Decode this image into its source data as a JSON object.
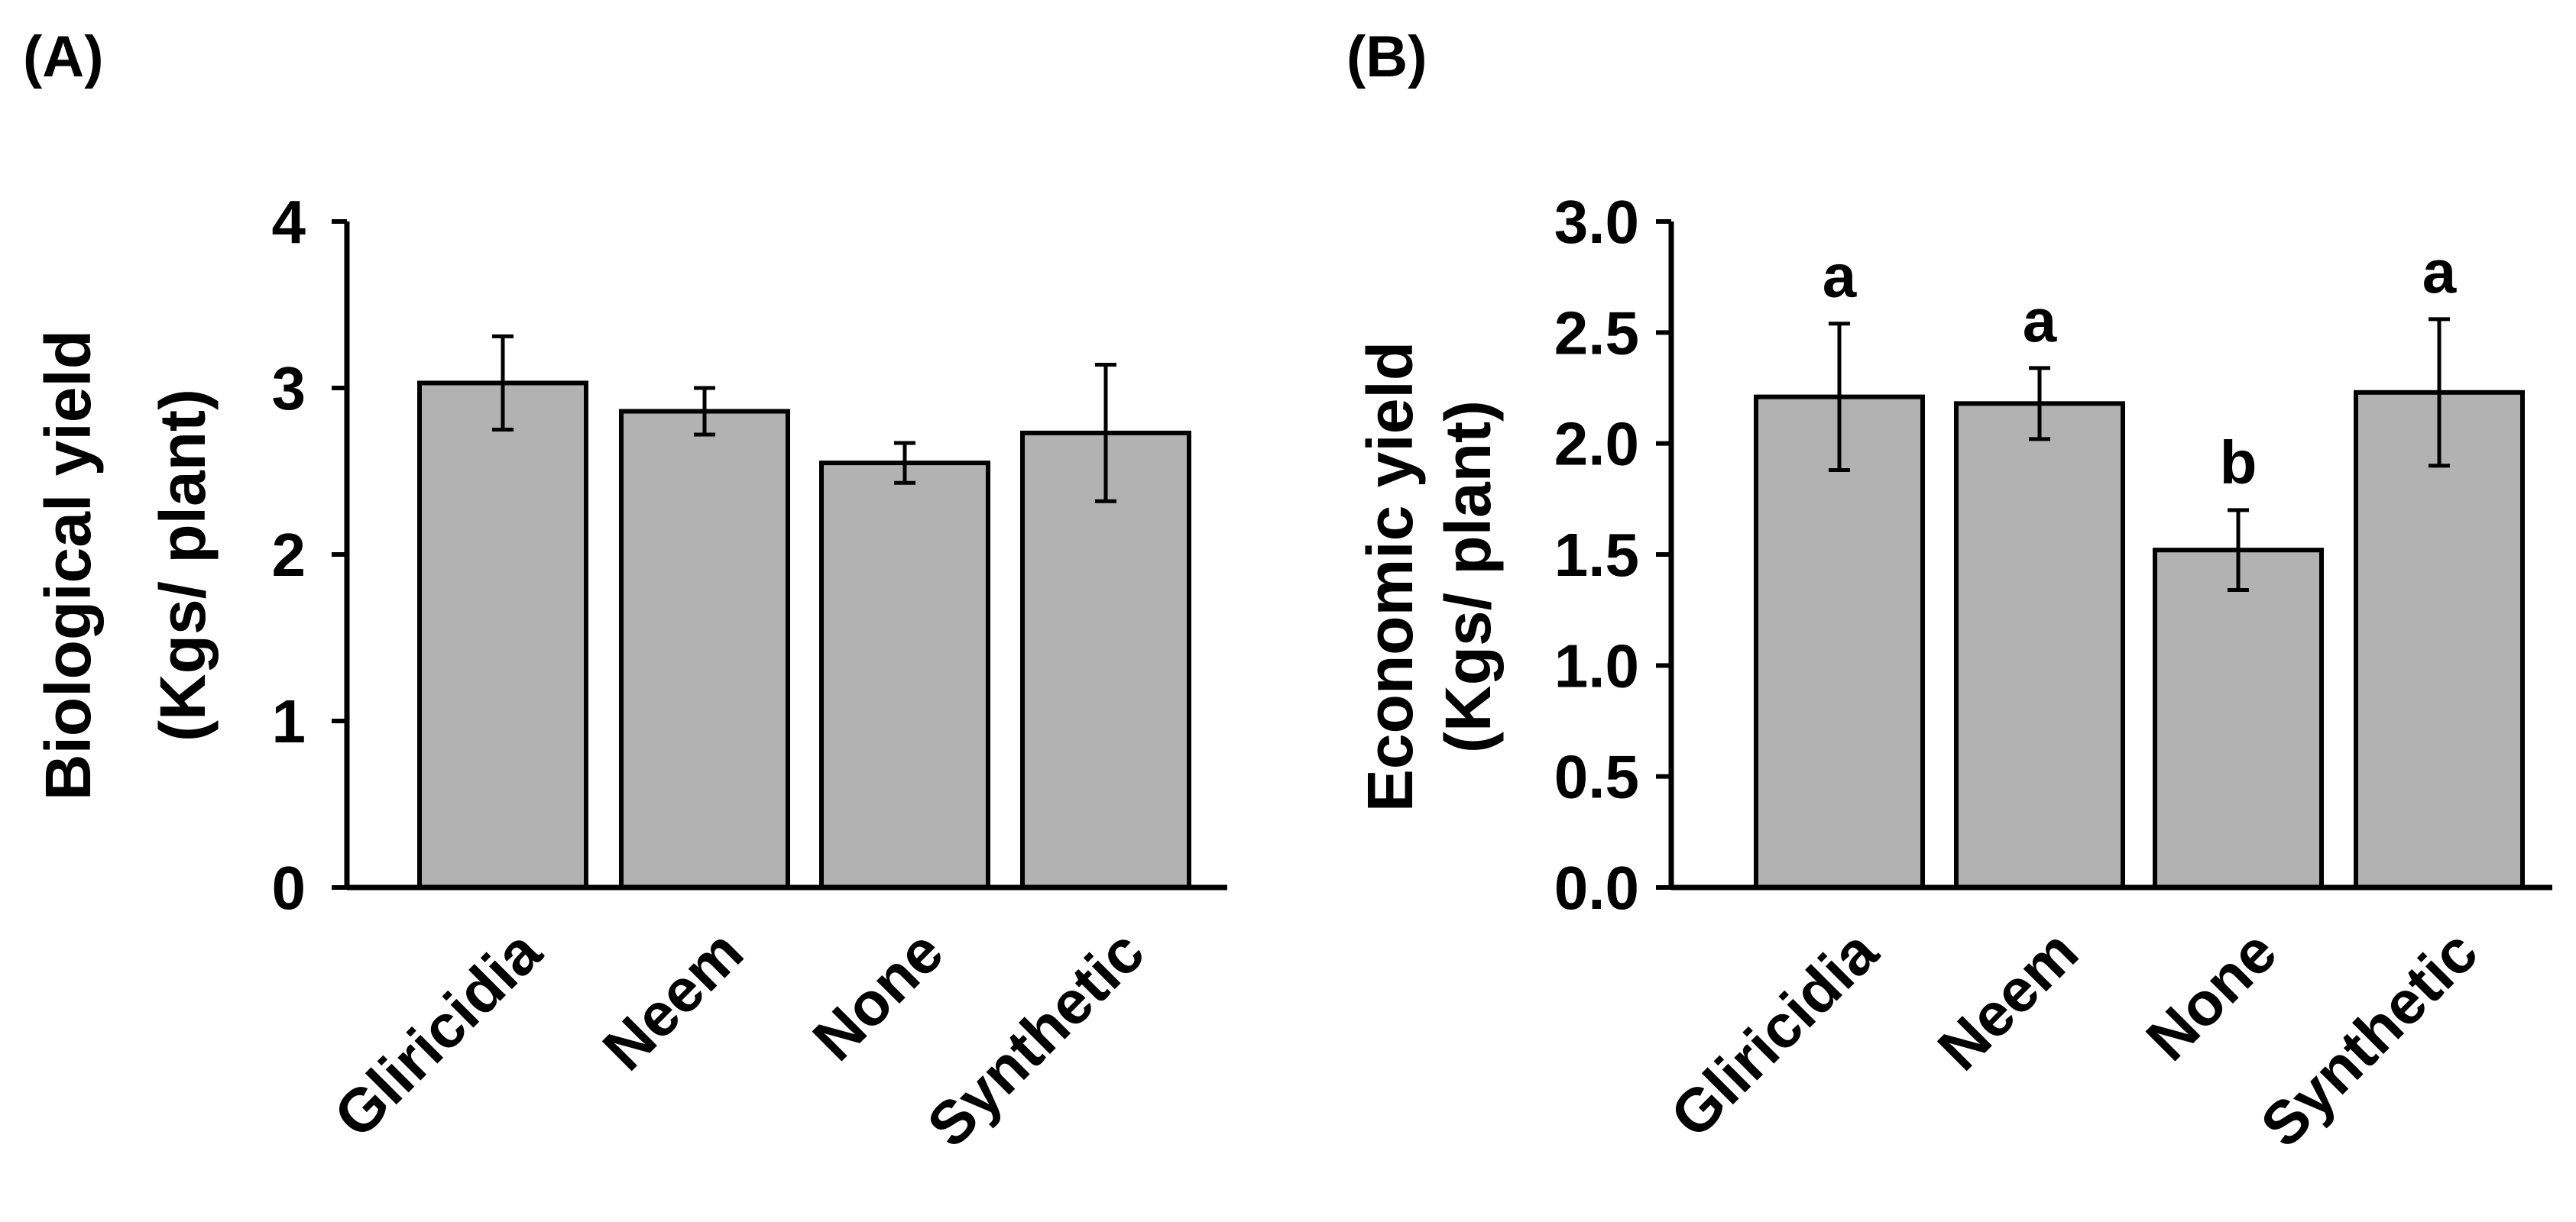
{
  "chart_data": [
    {
      "panel_label": "(A)",
      "type": "bar",
      "categories": [
        "Gliricidia",
        "Neem",
        "None",
        "Synthetic"
      ],
      "values": [
        3.03,
        2.86,
        2.55,
        2.73
      ],
      "errors": [
        0.28,
        0.14,
        0.12,
        0.41
      ],
      "significance_letters": [],
      "ylabel_line1": "Biological yield",
      "ylabel_line2": "(Kgs/ plant)",
      "ylim": [
        0,
        4
      ],
      "yticks": [
        0,
        1,
        2,
        3,
        4
      ],
      "ytick_labels": [
        "0",
        "1",
        "2",
        "3",
        "4"
      ],
      "grid": false,
      "bar_color": "#b2b2b2"
    },
    {
      "panel_label": "(B)",
      "type": "bar",
      "categories": [
        "Gliricidia",
        "Neem",
        "None",
        "Synthetic"
      ],
      "values": [
        2.21,
        2.18,
        1.52,
        2.23
      ],
      "errors": [
        0.33,
        0.16,
        0.18,
        0.33
      ],
      "significance_letters": [
        "a",
        "a",
        "b",
        "a"
      ],
      "ylabel_line1": "Economic yield",
      "ylabel_line2": "(Kgs/ plant)",
      "ylim": [
        0,
        3
      ],
      "yticks": [
        0,
        0.5,
        1,
        1.5,
        2,
        2.5,
        3
      ],
      "ytick_labels": [
        "0.0",
        "0.5",
        "1.0",
        "1.5",
        "2.0",
        "2.5",
        "3.0"
      ],
      "grid": false,
      "bar_color": "#b2b2b2"
    }
  ]
}
